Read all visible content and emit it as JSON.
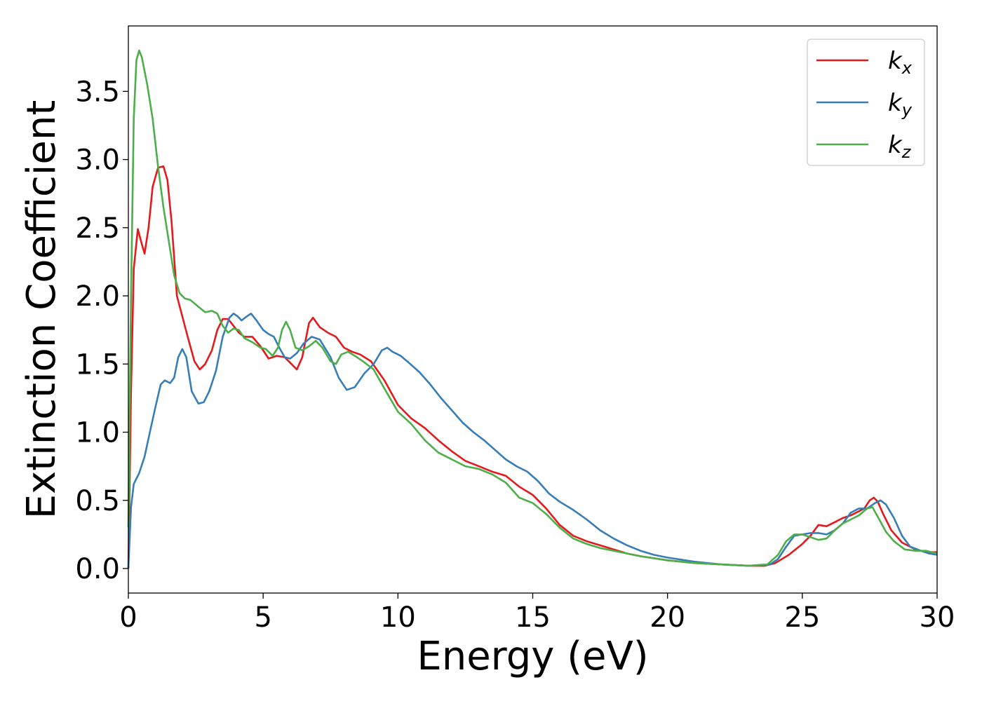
{
  "chart_data": {
    "type": "line",
    "xlabel": "Energy (eV)",
    "ylabel": "Extinction Coefficient",
    "xlim": [
      0,
      30
    ],
    "ylim": [
      -0.18,
      3.98
    ],
    "xticks": [
      0,
      5,
      10,
      15,
      20,
      25,
      30
    ],
    "xtick_labels": [
      "0",
      "5",
      "10",
      "15",
      "20",
      "25",
      "30"
    ],
    "yticks": [
      0.0,
      0.5,
      1.0,
      1.5,
      2.0,
      2.5,
      3.0,
      3.5
    ],
    "ytick_labels": [
      "0.0",
      "0.5",
      "1.0",
      "1.5",
      "2.0",
      "2.5",
      "3.0",
      "3.5"
    ],
    "grid": false,
    "legend_position": "top-right",
    "series": [
      {
        "name": "k",
        "subscript": "x",
        "color": "#e41a1c",
        "points": [
          [
            0,
            0.0
          ],
          [
            0.1,
            1.3
          ],
          [
            0.2,
            2.2
          ],
          [
            0.35,
            2.49
          ],
          [
            0.5,
            2.38
          ],
          [
            0.6,
            2.31
          ],
          [
            0.75,
            2.5
          ],
          [
            0.9,
            2.8
          ],
          [
            1.1,
            2.94
          ],
          [
            1.3,
            2.95
          ],
          [
            1.45,
            2.85
          ],
          [
            1.6,
            2.55
          ],
          [
            1.8,
            2.0
          ],
          [
            2.0,
            1.85
          ],
          [
            2.2,
            1.7
          ],
          [
            2.45,
            1.52
          ],
          [
            2.65,
            1.46
          ],
          [
            2.85,
            1.5
          ],
          [
            3.1,
            1.6
          ],
          [
            3.3,
            1.75
          ],
          [
            3.5,
            1.83
          ],
          [
            3.7,
            1.83
          ],
          [
            3.9,
            1.78
          ],
          [
            4.1,
            1.73
          ],
          [
            4.3,
            1.7
          ],
          [
            4.6,
            1.7
          ],
          [
            4.9,
            1.63
          ],
          [
            5.2,
            1.54
          ],
          [
            5.5,
            1.56
          ],
          [
            5.8,
            1.55
          ],
          [
            6.05,
            1.5
          ],
          [
            6.25,
            1.46
          ],
          [
            6.45,
            1.55
          ],
          [
            6.7,
            1.8
          ],
          [
            6.85,
            1.84
          ],
          [
            7.1,
            1.77
          ],
          [
            7.4,
            1.73
          ],
          [
            7.7,
            1.7
          ],
          [
            8.0,
            1.62
          ],
          [
            8.3,
            1.59
          ],
          [
            8.6,
            1.57
          ],
          [
            9.0,
            1.52
          ],
          [
            9.5,
            1.38
          ],
          [
            10.0,
            1.2
          ],
          [
            10.5,
            1.1
          ],
          [
            11.0,
            1.03
          ],
          [
            11.5,
            0.94
          ],
          [
            12.0,
            0.86
          ],
          [
            12.5,
            0.79
          ],
          [
            13.0,
            0.75
          ],
          [
            13.5,
            0.71
          ],
          [
            14.0,
            0.68
          ],
          [
            14.5,
            0.6
          ],
          [
            15.0,
            0.54
          ],
          [
            15.5,
            0.44
          ],
          [
            16.0,
            0.32
          ],
          [
            16.5,
            0.24
          ],
          [
            17.0,
            0.2
          ],
          [
            17.5,
            0.17
          ],
          [
            18.0,
            0.14
          ],
          [
            18.5,
            0.11
          ],
          [
            19.0,
            0.09
          ],
          [
            20.0,
            0.06
          ],
          [
            21.0,
            0.04
          ],
          [
            22.0,
            0.03
          ],
          [
            23.0,
            0.02
          ],
          [
            23.6,
            0.02
          ],
          [
            24.0,
            0.04
          ],
          [
            24.5,
            0.1
          ],
          [
            25.0,
            0.18
          ],
          [
            25.3,
            0.24
          ],
          [
            25.6,
            0.32
          ],
          [
            25.9,
            0.31
          ],
          [
            26.2,
            0.34
          ],
          [
            26.5,
            0.37
          ],
          [
            26.8,
            0.39
          ],
          [
            27.1,
            0.42
          ],
          [
            27.3,
            0.44
          ],
          [
            27.5,
            0.5
          ],
          [
            27.65,
            0.52
          ],
          [
            27.8,
            0.49
          ],
          [
            28.0,
            0.4
          ],
          [
            28.3,
            0.28
          ],
          [
            28.7,
            0.19
          ],
          [
            29.2,
            0.14
          ],
          [
            29.6,
            0.12
          ],
          [
            30.0,
            0.12
          ]
        ]
      },
      {
        "name": "k",
        "subscript": "y",
        "color": "#377eb8",
        "points": [
          [
            0,
            0.0
          ],
          [
            0.1,
            0.45
          ],
          [
            0.2,
            0.62
          ],
          [
            0.4,
            0.7
          ],
          [
            0.6,
            0.82
          ],
          [
            0.8,
            1.0
          ],
          [
            1.0,
            1.18
          ],
          [
            1.2,
            1.35
          ],
          [
            1.35,
            1.38
          ],
          [
            1.55,
            1.36
          ],
          [
            1.7,
            1.4
          ],
          [
            1.85,
            1.55
          ],
          [
            2.0,
            1.61
          ],
          [
            2.15,
            1.55
          ],
          [
            2.35,
            1.3
          ],
          [
            2.6,
            1.21
          ],
          [
            2.8,
            1.22
          ],
          [
            3.0,
            1.3
          ],
          [
            3.25,
            1.45
          ],
          [
            3.5,
            1.7
          ],
          [
            3.75,
            1.84
          ],
          [
            3.9,
            1.87
          ],
          [
            4.05,
            1.85
          ],
          [
            4.2,
            1.82
          ],
          [
            4.4,
            1.85
          ],
          [
            4.55,
            1.87
          ],
          [
            4.75,
            1.82
          ],
          [
            5.0,
            1.75
          ],
          [
            5.2,
            1.72
          ],
          [
            5.4,
            1.7
          ],
          [
            5.6,
            1.62
          ],
          [
            5.8,
            1.55
          ],
          [
            6.0,
            1.54
          ],
          [
            6.25,
            1.58
          ],
          [
            6.5,
            1.65
          ],
          [
            6.8,
            1.7
          ],
          [
            7.1,
            1.68
          ],
          [
            7.5,
            1.55
          ],
          [
            7.8,
            1.4
          ],
          [
            8.1,
            1.31
          ],
          [
            8.4,
            1.33
          ],
          [
            8.75,
            1.43
          ],
          [
            9.1,
            1.5
          ],
          [
            9.4,
            1.6
          ],
          [
            9.6,
            1.62
          ],
          [
            9.8,
            1.59
          ],
          [
            10.1,
            1.56
          ],
          [
            10.4,
            1.51
          ],
          [
            10.8,
            1.44
          ],
          [
            11.2,
            1.35
          ],
          [
            11.6,
            1.25
          ],
          [
            12.0,
            1.16
          ],
          [
            12.4,
            1.07
          ],
          [
            12.8,
            1.0
          ],
          [
            13.2,
            0.94
          ],
          [
            13.6,
            0.87
          ],
          [
            14.0,
            0.8
          ],
          [
            14.4,
            0.75
          ],
          [
            14.8,
            0.71
          ],
          [
            15.2,
            0.64
          ],
          [
            15.6,
            0.55
          ],
          [
            16.0,
            0.49
          ],
          [
            16.5,
            0.43
          ],
          [
            17.0,
            0.36
          ],
          [
            17.5,
            0.28
          ],
          [
            18.0,
            0.22
          ],
          [
            18.5,
            0.17
          ],
          [
            19.0,
            0.13
          ],
          [
            19.5,
            0.1
          ],
          [
            20.0,
            0.08
          ],
          [
            21.0,
            0.05
          ],
          [
            22.0,
            0.03
          ],
          [
            23.0,
            0.02
          ],
          [
            23.8,
            0.03
          ],
          [
            24.1,
            0.07
          ],
          [
            24.4,
            0.16
          ],
          [
            24.7,
            0.24
          ],
          [
            25.0,
            0.25
          ],
          [
            25.3,
            0.26
          ],
          [
            25.6,
            0.26
          ],
          [
            25.9,
            0.25
          ],
          [
            26.2,
            0.28
          ],
          [
            26.5,
            0.33
          ],
          [
            26.8,
            0.41
          ],
          [
            27.1,
            0.44
          ],
          [
            27.4,
            0.44
          ],
          [
            27.7,
            0.48
          ],
          [
            27.9,
            0.5
          ],
          [
            28.1,
            0.47
          ],
          [
            28.4,
            0.37
          ],
          [
            28.7,
            0.24
          ],
          [
            29.0,
            0.16
          ],
          [
            29.4,
            0.13
          ],
          [
            29.7,
            0.11
          ],
          [
            30.0,
            0.1
          ]
        ]
      },
      {
        "name": "k",
        "subscript": "z",
        "color": "#4daf4a",
        "points": [
          [
            0,
            0.3
          ],
          [
            0.1,
            2.0
          ],
          [
            0.2,
            3.3
          ],
          [
            0.3,
            3.73
          ],
          [
            0.4,
            3.8
          ],
          [
            0.5,
            3.75
          ],
          [
            0.7,
            3.55
          ],
          [
            0.9,
            3.3
          ],
          [
            1.1,
            2.95
          ],
          [
            1.3,
            2.65
          ],
          [
            1.5,
            2.4
          ],
          [
            1.7,
            2.15
          ],
          [
            1.9,
            2.02
          ],
          [
            2.1,
            1.98
          ],
          [
            2.3,
            1.97
          ],
          [
            2.6,
            1.92
          ],
          [
            2.85,
            1.88
          ],
          [
            3.1,
            1.89
          ],
          [
            3.3,
            1.87
          ],
          [
            3.5,
            1.78
          ],
          [
            3.7,
            1.73
          ],
          [
            3.9,
            1.76
          ],
          [
            4.1,
            1.75
          ],
          [
            4.3,
            1.69
          ],
          [
            4.6,
            1.66
          ],
          [
            4.9,
            1.62
          ],
          [
            5.1,
            1.61
          ],
          [
            5.35,
            1.56
          ],
          [
            5.55,
            1.62
          ],
          [
            5.7,
            1.75
          ],
          [
            5.85,
            1.81
          ],
          [
            6.0,
            1.75
          ],
          [
            6.2,
            1.62
          ],
          [
            6.45,
            1.6
          ],
          [
            6.7,
            1.63
          ],
          [
            6.95,
            1.67
          ],
          [
            7.2,
            1.62
          ],
          [
            7.5,
            1.52
          ],
          [
            7.7,
            1.5
          ],
          [
            7.9,
            1.57
          ],
          [
            8.15,
            1.59
          ],
          [
            8.4,
            1.56
          ],
          [
            8.7,
            1.52
          ],
          [
            9.1,
            1.46
          ],
          [
            9.5,
            1.32
          ],
          [
            10.0,
            1.15
          ],
          [
            10.5,
            1.06
          ],
          [
            11.0,
            0.94
          ],
          [
            11.5,
            0.85
          ],
          [
            12.0,
            0.8
          ],
          [
            12.5,
            0.75
          ],
          [
            13.0,
            0.73
          ],
          [
            13.5,
            0.69
          ],
          [
            14.0,
            0.63
          ],
          [
            14.5,
            0.52
          ],
          [
            15.0,
            0.48
          ],
          [
            15.5,
            0.4
          ],
          [
            16.0,
            0.3
          ],
          [
            16.5,
            0.22
          ],
          [
            17.0,
            0.18
          ],
          [
            17.5,
            0.15
          ],
          [
            18.0,
            0.13
          ],
          [
            18.5,
            0.11
          ],
          [
            19.0,
            0.09
          ],
          [
            20.0,
            0.06
          ],
          [
            21.0,
            0.04
          ],
          [
            22.0,
            0.03
          ],
          [
            23.0,
            0.02
          ],
          [
            23.7,
            0.03
          ],
          [
            24.1,
            0.1
          ],
          [
            24.4,
            0.2
          ],
          [
            24.7,
            0.25
          ],
          [
            25.0,
            0.25
          ],
          [
            25.3,
            0.23
          ],
          [
            25.6,
            0.21
          ],
          [
            25.9,
            0.22
          ],
          [
            26.2,
            0.28
          ],
          [
            26.5,
            0.33
          ],
          [
            26.8,
            0.36
          ],
          [
            27.1,
            0.39
          ],
          [
            27.4,
            0.44
          ],
          [
            27.6,
            0.45
          ],
          [
            27.8,
            0.38
          ],
          [
            28.1,
            0.27
          ],
          [
            28.4,
            0.2
          ],
          [
            28.8,
            0.14
          ],
          [
            29.2,
            0.13
          ],
          [
            29.6,
            0.13
          ],
          [
            30.0,
            0.11
          ]
        ]
      }
    ]
  }
}
